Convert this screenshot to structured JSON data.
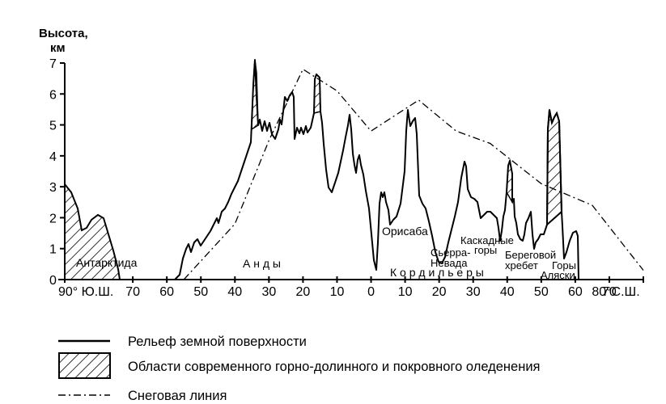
{
  "chart_data": {
    "type": "line",
    "ylabel_line1": "Высота,",
    "ylabel_line2": "км",
    "ylim": [
      0,
      7
    ],
    "y_ticks": [
      "0",
      "1",
      "2",
      "3",
      "4",
      "5",
      "6",
      "7"
    ],
    "x_ticks": [
      "90° Ю.Ш.",
      "70",
      "60",
      "50",
      "40",
      "30",
      "20",
      "10",
      "0",
      "10",
      "20",
      "30",
      "40",
      "50",
      "60",
      "70",
      "80°С.Ш."
    ],
    "annotations": [
      "Антарктида",
      "А н д ы",
      "Орисаба",
      "К о р д и л ь е р ы",
      "Сьерра-",
      "Невада",
      "Каскадные",
      "горы",
      "Береговой",
      "хребет",
      "Горы",
      "Аляски"
    ],
    "series": [
      {
        "name": "Рельеф земной поверхности",
        "style": "solid"
      },
      {
        "name": "Области современного горно-долинного и покровного оледенения",
        "style": "hatched"
      },
      {
        "name": "Снеговая линия",
        "style": "dash-dot"
      }
    ],
    "snow_line_points": [
      [
        -55,
        0
      ],
      [
        -40,
        1.8
      ],
      [
        -30,
        4.5
      ],
      [
        -20,
        6.8
      ],
      [
        -10,
        6.1
      ],
      [
        0,
        4.8
      ],
      [
        14,
        5.8
      ],
      [
        25,
        4.8
      ],
      [
        35,
        4.4
      ],
      [
        50,
        3.1
      ],
      [
        65,
        2.4
      ],
      [
        80,
        0.3
      ]
    ]
  }
}
